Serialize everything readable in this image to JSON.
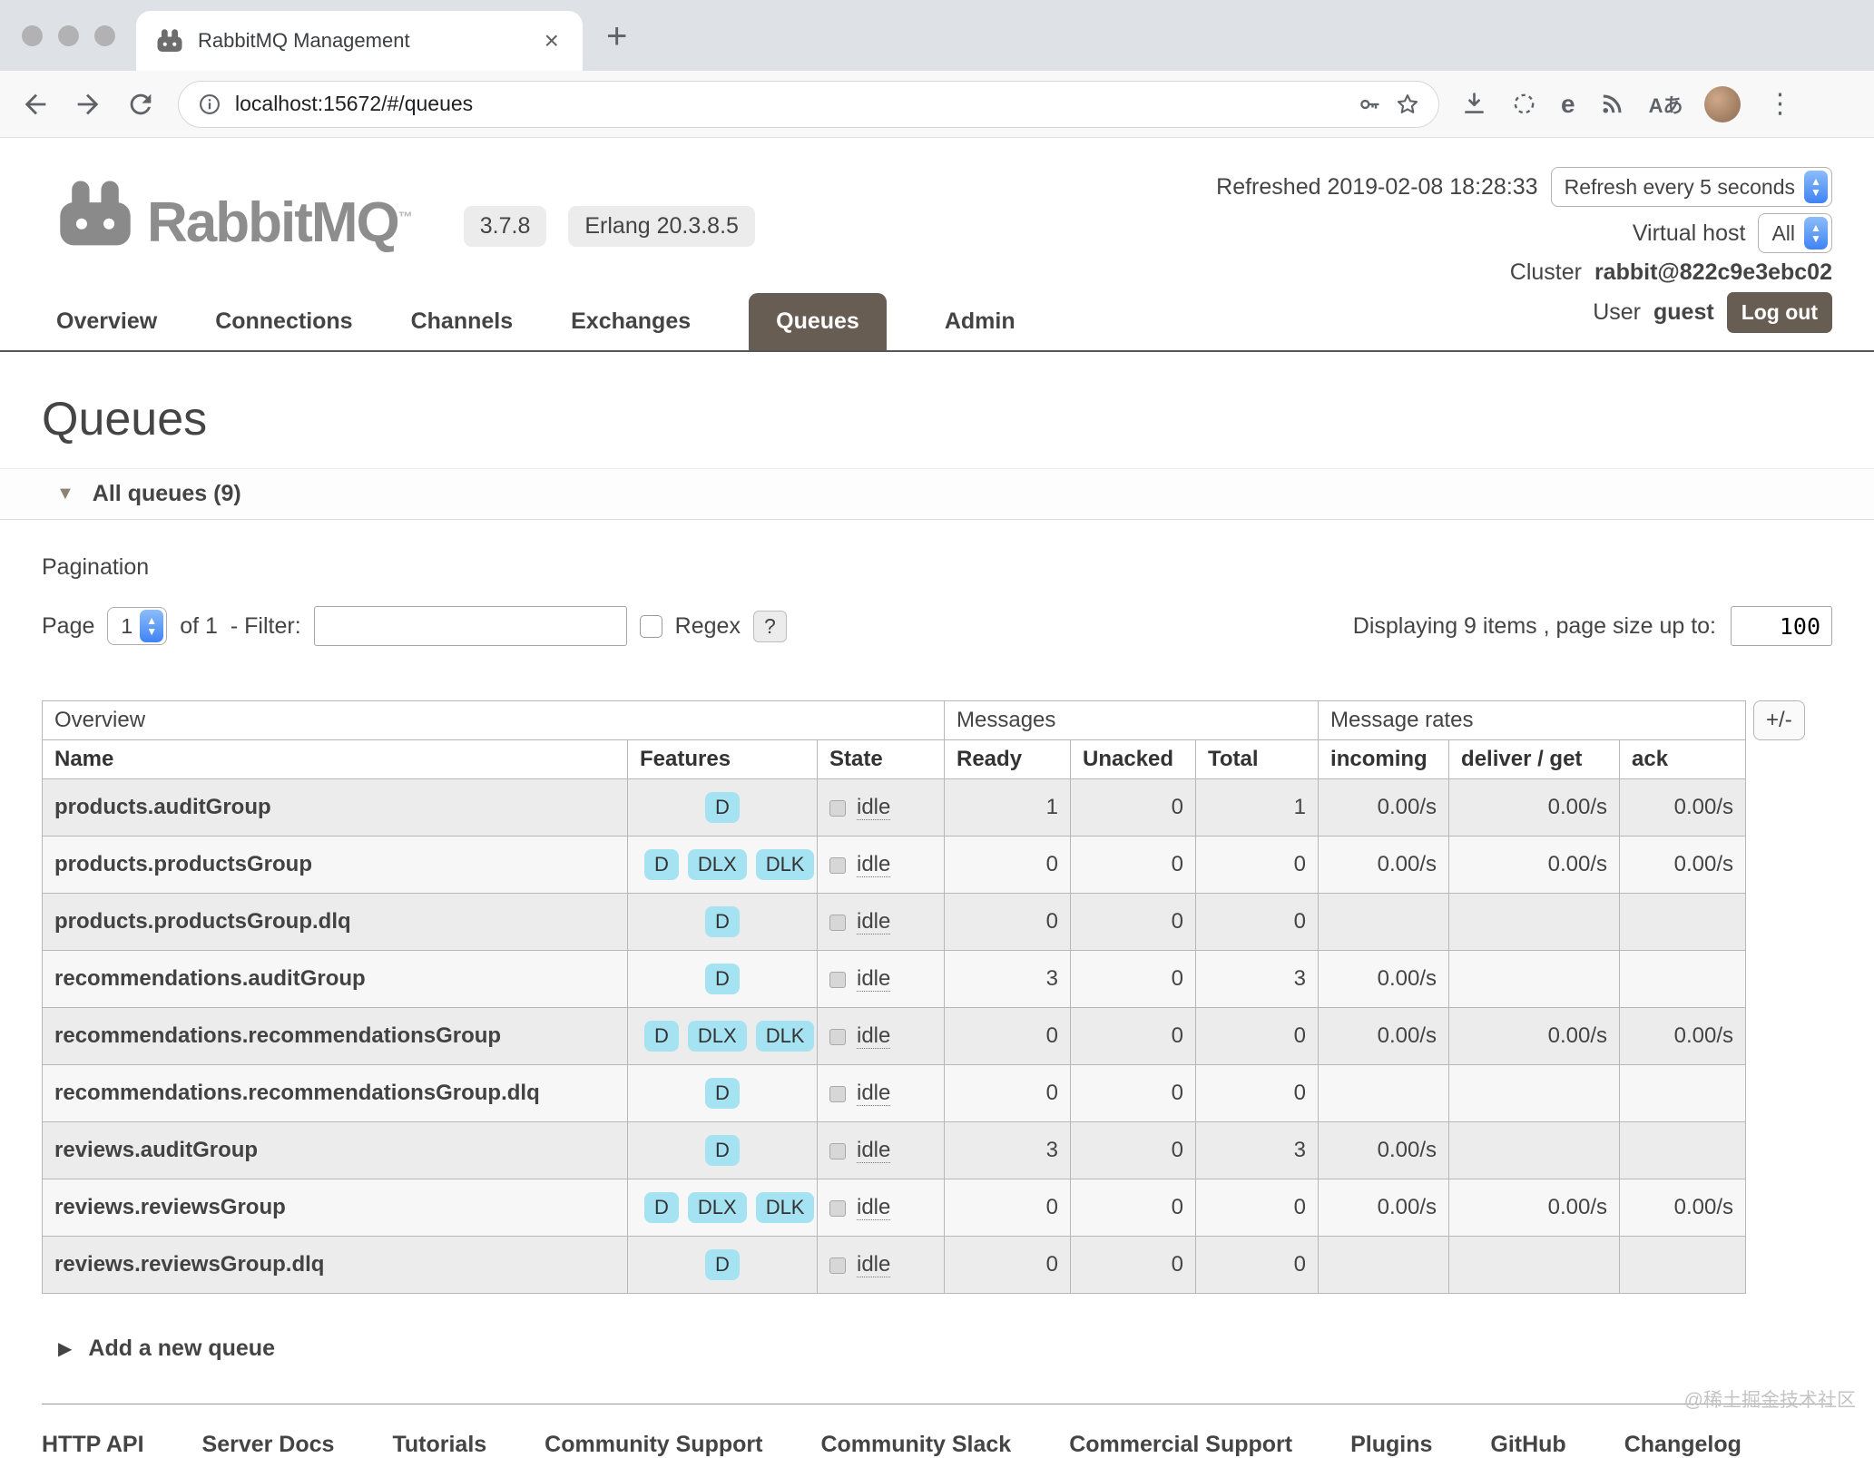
{
  "browser": {
    "tab_title": "RabbitMQ Management",
    "url": "localhost:15672/#/queues"
  },
  "icons": {
    "close": "×",
    "new_tab": "+",
    "kebab": "⋮",
    "translate": "Aあ",
    "e_badge": "e",
    "triangle_down": "▼",
    "triangle_right": "▶",
    "stepper_up": "▲",
    "stepper_down": "▼"
  },
  "header": {
    "logo_text": "RabbitMQ",
    "trademark": "™",
    "version": "3.7.8",
    "erlang": "Erlang 20.3.8.5",
    "refreshed": "Refreshed 2019-02-08 18:28:33",
    "refresh_select": "Refresh every 5 seconds",
    "virtual_host_label": "Virtual host",
    "virtual_host_value": "All",
    "cluster_label": "Cluster",
    "cluster_value": "rabbit@822c9e3ebc02",
    "user_label": "User",
    "user_value": "guest",
    "logout_label": "Log out"
  },
  "nav": {
    "tabs": [
      {
        "label": "Overview",
        "active": false
      },
      {
        "label": "Connections",
        "active": false
      },
      {
        "label": "Channels",
        "active": false
      },
      {
        "label": "Exchanges",
        "active": false
      },
      {
        "label": "Queues",
        "active": true
      },
      {
        "label": "Admin",
        "active": false
      }
    ]
  },
  "page": {
    "title": "Queues",
    "section_header": "All queues (9)",
    "pagination_label": "Pagination",
    "page_label": "Page",
    "page_value": "1",
    "of_label": "of 1",
    "filter_label": "- Filter:",
    "filter_value": "",
    "regex_label": "Regex",
    "help_label": "?",
    "displaying_label": "Displaying 9 items , page size up to:",
    "page_size_value": "100",
    "add_queue_label": "Add a new queue"
  },
  "table": {
    "corner_button": "+/-",
    "groups": [
      {
        "label": "Overview",
        "span": 3
      },
      {
        "label": "Messages",
        "span": 3
      },
      {
        "label": "Message rates",
        "span": 3
      }
    ],
    "columns": [
      "Name",
      "Features",
      "State",
      "Ready",
      "Unacked",
      "Total",
      "incoming",
      "deliver / get",
      "ack"
    ],
    "rows": [
      {
        "name": "products.auditGroup",
        "features": [
          "D"
        ],
        "state": "idle",
        "ready": "1",
        "unacked": "0",
        "total": "1",
        "incoming": "0.00/s",
        "deliver": "0.00/s",
        "ack": "0.00/s"
      },
      {
        "name": "products.productsGroup",
        "features": [
          "D",
          "DLX",
          "DLK"
        ],
        "state": "idle",
        "ready": "0",
        "unacked": "0",
        "total": "0",
        "incoming": "0.00/s",
        "deliver": "0.00/s",
        "ack": "0.00/s"
      },
      {
        "name": "products.productsGroup.dlq",
        "features": [
          "D"
        ],
        "state": "idle",
        "ready": "0",
        "unacked": "0",
        "total": "0",
        "incoming": "",
        "deliver": "",
        "ack": ""
      },
      {
        "name": "recommendations.auditGroup",
        "features": [
          "D"
        ],
        "state": "idle",
        "ready": "3",
        "unacked": "0",
        "total": "3",
        "incoming": "0.00/s",
        "deliver": "",
        "ack": ""
      },
      {
        "name": "recommendations.recommendationsGroup",
        "features": [
          "D",
          "DLX",
          "DLK"
        ],
        "state": "idle",
        "ready": "0",
        "unacked": "0",
        "total": "0",
        "incoming": "0.00/s",
        "deliver": "0.00/s",
        "ack": "0.00/s"
      },
      {
        "name": "recommendations.recommendationsGroup.dlq",
        "features": [
          "D"
        ],
        "state": "idle",
        "ready": "0",
        "unacked": "0",
        "total": "0",
        "incoming": "",
        "deliver": "",
        "ack": ""
      },
      {
        "name": "reviews.auditGroup",
        "features": [
          "D"
        ],
        "state": "idle",
        "ready": "3",
        "unacked": "0",
        "total": "3",
        "incoming": "0.00/s",
        "deliver": "",
        "ack": ""
      },
      {
        "name": "reviews.reviewsGroup",
        "features": [
          "D",
          "DLX",
          "DLK"
        ],
        "state": "idle",
        "ready": "0",
        "unacked": "0",
        "total": "0",
        "incoming": "0.00/s",
        "deliver": "0.00/s",
        "ack": "0.00/s"
      },
      {
        "name": "reviews.reviewsGroup.dlq",
        "features": [
          "D"
        ],
        "state": "idle",
        "ready": "0",
        "unacked": "0",
        "total": "0",
        "incoming": "",
        "deliver": "",
        "ack": ""
      }
    ]
  },
  "footer": {
    "links": [
      "HTTP API",
      "Server Docs",
      "Tutorials",
      "Community Support",
      "Community Slack",
      "Commercial Support",
      "Plugins",
      "GitHub",
      "Changelog"
    ]
  },
  "watermark": "@稀土掘金技术社区",
  "colors": {
    "active_tab_bg": "#685d53",
    "logout_bg": "#685d53",
    "feature_badge_bg": "#a5e2f2",
    "state_square": "#d7d7d7",
    "logo_gray": "#8a8a8a",
    "table_border": "#b7b7b7",
    "row_odd": "#ececec",
    "row_even": "#f7f7f7"
  }
}
